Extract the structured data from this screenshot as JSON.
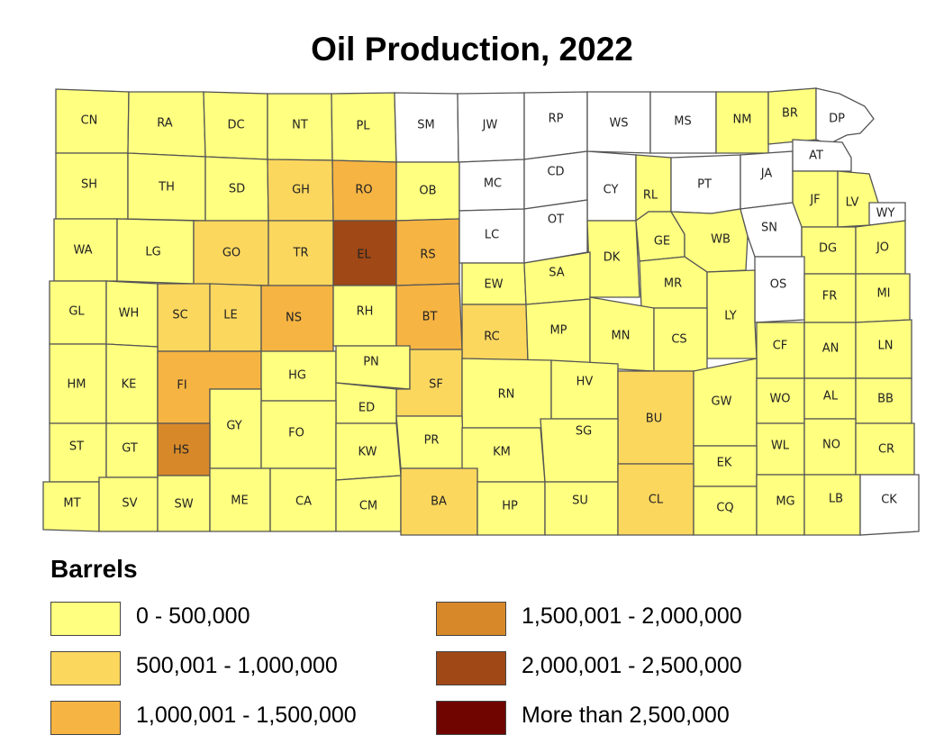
{
  "title": "Oil Production, 2022",
  "legend": {
    "title": "Barrels",
    "classes": [
      {
        "label": "0 - 500,000",
        "color": "#FFFF80"
      },
      {
        "label": "500,001 - 1,000,000",
        "color": "#FCD75E"
      },
      {
        "label": "1,000,001 - 1,500,000",
        "color": "#F6B443"
      },
      {
        "label": "1,500,001 - 2,000,000",
        "color": "#D7892A"
      },
      {
        "label": "2,000,001 - 2,500,000",
        "color": "#A04816"
      },
      {
        "label": "More than 2,500,000",
        "color": "#700500"
      }
    ],
    "no_data_color": "#FFFFFF"
  },
  "counties": [
    {
      "code": "CN",
      "class": 0
    },
    {
      "code": "RA",
      "class": 0
    },
    {
      "code": "DC",
      "class": 0
    },
    {
      "code": "NT",
      "class": 0
    },
    {
      "code": "PL",
      "class": 0
    },
    {
      "code": "SM",
      "class": null
    },
    {
      "code": "JW",
      "class": null
    },
    {
      "code": "RP",
      "class": null
    },
    {
      "code": "WS",
      "class": null
    },
    {
      "code": "MS",
      "class": null
    },
    {
      "code": "NM",
      "class": 0
    },
    {
      "code": "BR",
      "class": 0
    },
    {
      "code": "DP",
      "class": null
    },
    {
      "code": "SH",
      "class": 0
    },
    {
      "code": "TH",
      "class": 0
    },
    {
      "code": "SD",
      "class": 0
    },
    {
      "code": "GH",
      "class": 1
    },
    {
      "code": "RO",
      "class": 2
    },
    {
      "code": "OB",
      "class": 0
    },
    {
      "code": "MC",
      "class": null
    },
    {
      "code": "CD",
      "class": null
    },
    {
      "code": "CY",
      "class": null
    },
    {
      "code": "RL",
      "class": 0
    },
    {
      "code": "PT",
      "class": null
    },
    {
      "code": "JA",
      "class": null
    },
    {
      "code": "AT",
      "class": null
    },
    {
      "code": "JF",
      "class": 0
    },
    {
      "code": "LV",
      "class": 0
    },
    {
      "code": "WY",
      "class": null
    },
    {
      "code": "WA",
      "class": 0
    },
    {
      "code": "LG",
      "class": 0
    },
    {
      "code": "GO",
      "class": 1
    },
    {
      "code": "TR",
      "class": 1
    },
    {
      "code": "EL",
      "class": 4
    },
    {
      "code": "RS",
      "class": 2
    },
    {
      "code": "LC",
      "class": null
    },
    {
      "code": "OT",
      "class": null
    },
    {
      "code": "DK",
      "class": 0
    },
    {
      "code": "GE",
      "class": 0
    },
    {
      "code": "WB",
      "class": 0
    },
    {
      "code": "SN",
      "class": null
    },
    {
      "code": "DG",
      "class": 0
    },
    {
      "code": "JO",
      "class": 0
    },
    {
      "code": "GL",
      "class": 0
    },
    {
      "code": "WH",
      "class": 0
    },
    {
      "code": "SC",
      "class": 1
    },
    {
      "code": "LE",
      "class": 1
    },
    {
      "code": "NS",
      "class": 2
    },
    {
      "code": "RH",
      "class": 0
    },
    {
      "code": "BT",
      "class": 2
    },
    {
      "code": "EW",
      "class": 0
    },
    {
      "code": "SA",
      "class": 0
    },
    {
      "code": "MR",
      "class": 0
    },
    {
      "code": "OS",
      "class": null
    },
    {
      "code": "FR",
      "class": 0
    },
    {
      "code": "MI",
      "class": 0
    },
    {
      "code": "LY",
      "class": 0
    },
    {
      "code": "RC",
      "class": 1
    },
    {
      "code": "MP",
      "class": 0
    },
    {
      "code": "MN",
      "class": 0
    },
    {
      "code": "CS",
      "class": 0
    },
    {
      "code": "CF",
      "class": 0
    },
    {
      "code": "AN",
      "class": 0
    },
    {
      "code": "LN",
      "class": 0
    },
    {
      "code": "HM",
      "class": 0
    },
    {
      "code": "KE",
      "class": 0
    },
    {
      "code": "FI",
      "class": 2
    },
    {
      "code": "HG",
      "class": 0
    },
    {
      "code": "PN",
      "class": 0
    },
    {
      "code": "SF",
      "class": 1
    },
    {
      "code": "RN",
      "class": 0
    },
    {
      "code": "HV",
      "class": 0
    },
    {
      "code": "BU",
      "class": 1
    },
    {
      "code": "GW",
      "class": 0
    },
    {
      "code": "WO",
      "class": 0
    },
    {
      "code": "AL",
      "class": 0
    },
    {
      "code": "BB",
      "class": 0
    },
    {
      "code": "ED",
      "class": 0
    },
    {
      "code": "GY",
      "class": 0
    },
    {
      "code": "FO",
      "class": 0
    },
    {
      "code": "ST",
      "class": 0
    },
    {
      "code": "GT",
      "class": 0
    },
    {
      "code": "HS",
      "class": 3
    },
    {
      "code": "KW",
      "class": 0
    },
    {
      "code": "PR",
      "class": 0
    },
    {
      "code": "KM",
      "class": 0
    },
    {
      "code": "SG",
      "class": 0
    },
    {
      "code": "WL",
      "class": 0
    },
    {
      "code": "NO",
      "class": 0
    },
    {
      "code": "CR",
      "class": 0
    },
    {
      "code": "EK",
      "class": 0
    },
    {
      "code": "MT",
      "class": 0
    },
    {
      "code": "SV",
      "class": 0
    },
    {
      "code": "SW",
      "class": 0
    },
    {
      "code": "ME",
      "class": 0
    },
    {
      "code": "CA",
      "class": 0
    },
    {
      "code": "CM",
      "class": 0
    },
    {
      "code": "BA",
      "class": 1
    },
    {
      "code": "HP",
      "class": 0
    },
    {
      "code": "SU",
      "class": 0
    },
    {
      "code": "CL",
      "class": 1
    },
    {
      "code": "CQ",
      "class": 0
    },
    {
      "code": "MG",
      "class": 0
    },
    {
      "code": "LB",
      "class": 0
    },
    {
      "code": "CK",
      "class": null
    }
  ]
}
